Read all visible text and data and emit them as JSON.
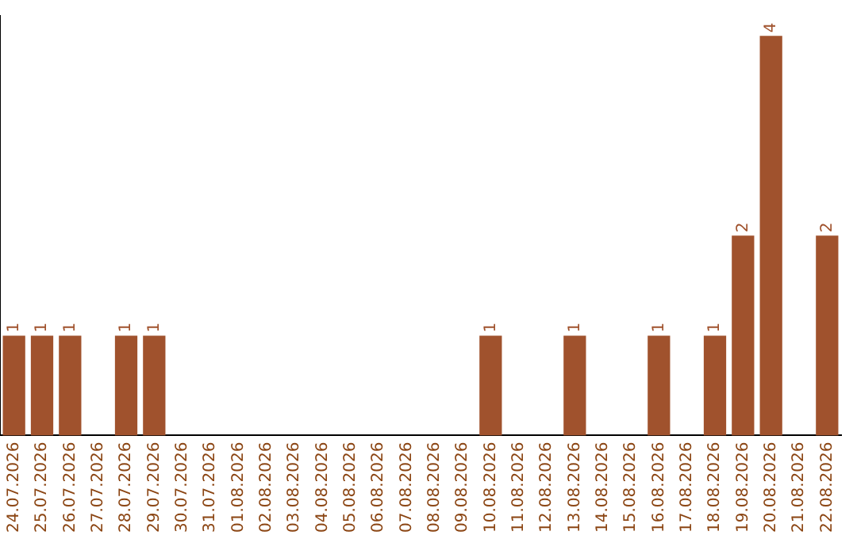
{
  "chart_data": {
    "type": "bar",
    "categories": [
      "24.07.2026",
      "25.07.2026",
      "26.07.2026",
      "27.07.2026",
      "28.07.2026",
      "29.07.2026",
      "30.07.2026",
      "31.07.2026",
      "01.08.2026",
      "02.08.2026",
      "03.08.2026",
      "04.08.2026",
      "05.08.2026",
      "06.08.2026",
      "07.08.2026",
      "08.08.2026",
      "09.08.2026",
      "10.08.2026",
      "11.08.2026",
      "12.08.2026",
      "13.08.2026",
      "14.08.2026",
      "15.08.2026",
      "16.08.2026",
      "17.08.2026",
      "18.08.2026",
      "19.08.2026",
      "20.08.2026",
      "21.08.2026",
      "22.08.2026"
    ],
    "values": [
      1,
      1,
      1,
      0,
      1,
      1,
      0,
      0,
      0,
      0,
      0,
      0,
      0,
      0,
      0,
      0,
      0,
      1,
      0,
      0,
      1,
      0,
      0,
      1,
      0,
      1,
      2,
      4,
      0,
      2
    ],
    "value_labels": [
      "1",
      "1",
      "1",
      null,
      "1",
      "1",
      null,
      null,
      null,
      null,
      null,
      null,
      null,
      null,
      null,
      null,
      null,
      "1",
      null,
      null,
      "1",
      null,
      null,
      "1",
      null,
      "1",
      "2",
      "4",
      null,
      "2"
    ],
    "color": "#a0522d",
    "ylim": [
      0,
      4.2
    ],
    "grid": false,
    "legend": false,
    "tick_labels": "x"
  }
}
